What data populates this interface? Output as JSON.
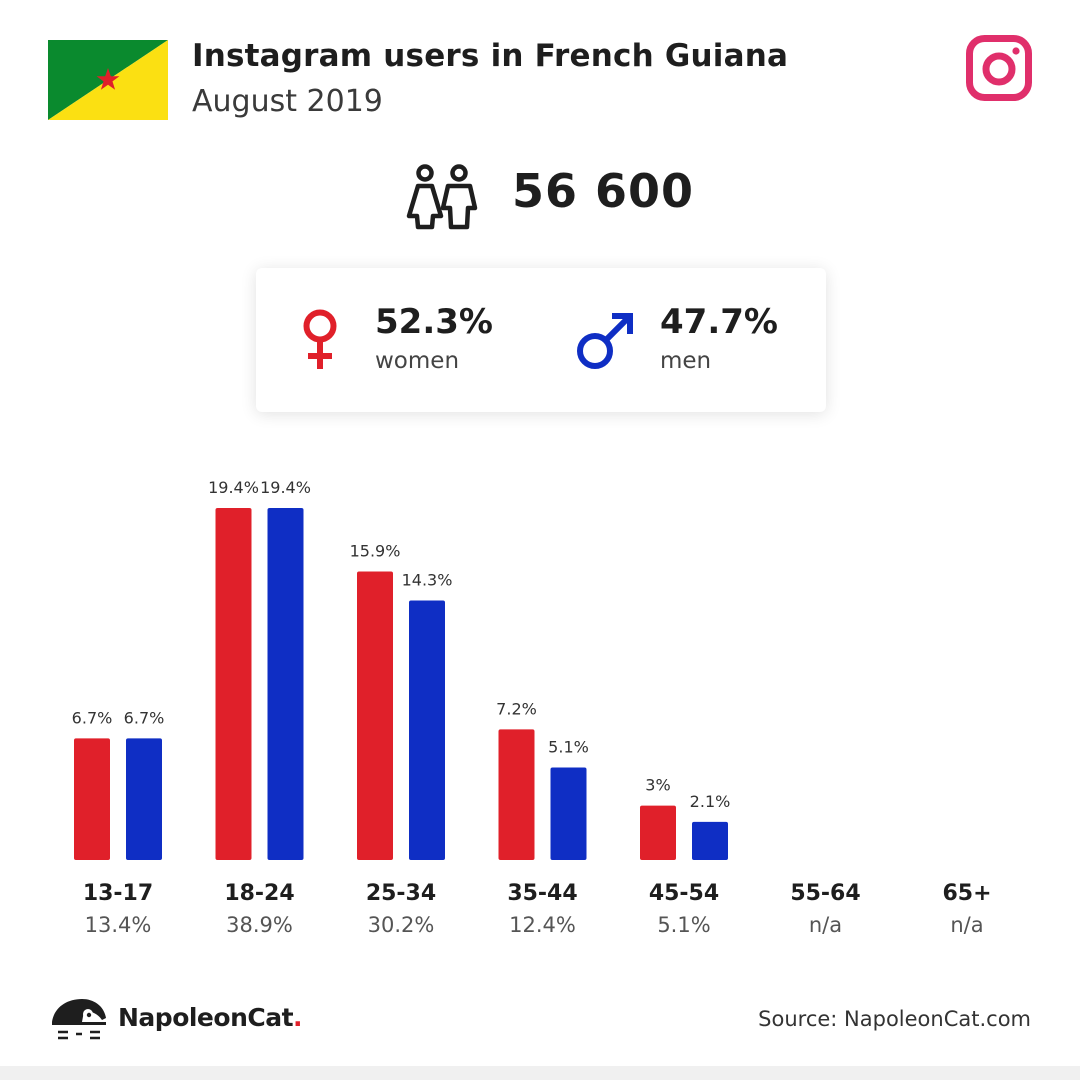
{
  "header": {
    "title": "Instagram users in French Guiana",
    "subtitle": "August 2019",
    "flag_icon": "french-guiana-flag",
    "platform_icon": "instagram-icon",
    "flag_colors": {
      "green": "#0a8a2e",
      "yellow": "#fbe012",
      "star": "#e0202a"
    },
    "instagram_color": "#e02f6b"
  },
  "total": {
    "icon": "users-icon",
    "value": "56 600"
  },
  "gender": {
    "women": {
      "icon": "female-icon",
      "pct": "52.3%",
      "label": "women",
      "color": "#e0202a"
    },
    "men": {
      "icon": "male-icon",
      "pct": "47.7%",
      "label": "men",
      "color": "#0f2ec4"
    }
  },
  "chart_data": {
    "type": "bar",
    "categories": [
      "13-17",
      "18-24",
      "25-34",
      "35-44",
      "45-54",
      "55-64",
      "65+"
    ],
    "category_totals": [
      "13.4%",
      "38.9%",
      "30.2%",
      "12.4%",
      "5.1%",
      "n/a",
      "n/a"
    ],
    "series": [
      {
        "color": "#e0202a",
        "values": [
          6.7,
          19.4,
          15.9,
          7.2,
          3,
          null,
          null
        ],
        "labels": [
          "6.7%",
          "19.4%",
          "15.9%",
          "7.2%",
          "3%",
          "",
          ""
        ]
      },
      {
        "color": "#0f2ec4",
        "values": [
          6.7,
          19.4,
          14.3,
          5.1,
          2.1,
          null,
          null
        ],
        "labels": [
          "6.7%",
          "19.4%",
          "14.3%",
          "5.1%",
          "2.1%",
          "",
          ""
        ]
      }
    ],
    "title": "",
    "xlabel": "",
    "ylabel": "",
    "ylim": [
      0,
      19.4
    ],
    "grid": false,
    "legend": "none"
  },
  "footer": {
    "logo_icon": "napoleoncat-logo-icon",
    "brand_name": "NapoleonCat",
    "brand_dot": ".",
    "source": "Source: NapoleonCat.com"
  }
}
